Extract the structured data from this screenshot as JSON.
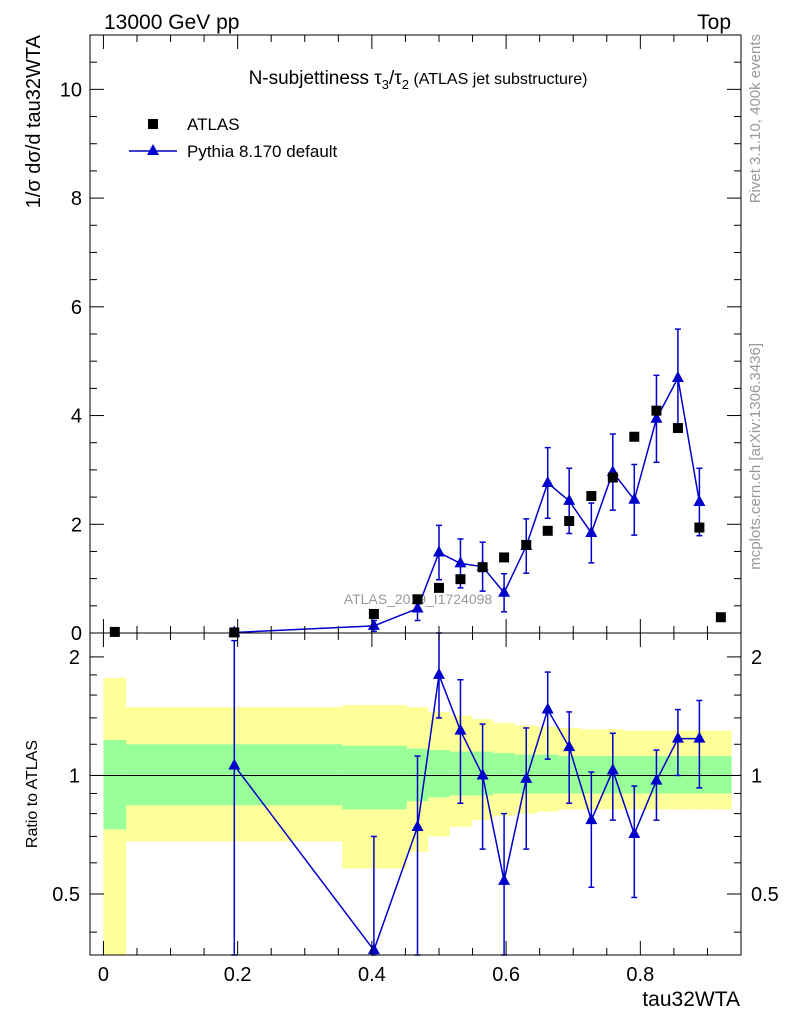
{
  "header": {
    "energy_label": "13000 GeV pp",
    "process_label": "Top"
  },
  "side_labels": {
    "rivet": "Rivet 3.1.10,  400k events",
    "mcplots": "mcplots.cern.ch [arXiv:1306.3436]"
  },
  "watermark": "ATLAS_2019_I1724098",
  "chart_data": [
    {
      "type": "scatter",
      "panel": "main",
      "title": "N-subjettiness τ3/τ2 (ATLAS jet substructure)",
      "ylabel": "1/σ dσ/d tau32WTA",
      "xlim": [
        -0.02,
        0.95
      ],
      "ylim": [
        0,
        11
      ],
      "yticks": [
        0,
        2,
        4,
        6,
        8,
        10
      ],
      "legend_position": "top-left",
      "series": [
        {
          "name": "ATLAS",
          "marker": "square",
          "color": "#000000",
          "points": [
            {
              "x": 0.017,
              "y": 0.02
            },
            {
              "x": 0.195,
              "y": 0.01
            },
            {
              "x": 0.403,
              "y": 0.35
            },
            {
              "x": 0.468,
              "y": 0.62
            },
            {
              "x": 0.5,
              "y": 0.83
            },
            {
              "x": 0.532,
              "y": 0.99
            },
            {
              "x": 0.565,
              "y": 1.21
            },
            {
              "x": 0.597,
              "y": 1.39
            },
            {
              "x": 0.63,
              "y": 1.62
            },
            {
              "x": 0.662,
              "y": 1.88
            },
            {
              "x": 0.694,
              "y": 2.06
            },
            {
              "x": 0.727,
              "y": 2.52
            },
            {
              "x": 0.759,
              "y": 2.86
            },
            {
              "x": 0.791,
              "y": 3.61
            },
            {
              "x": 0.824,
              "y": 4.09
            },
            {
              "x": 0.856,
              "y": 3.77
            },
            {
              "x": 0.888,
              "y": 1.94
            },
            {
              "x": 0.92,
              "y": 0.29
            }
          ]
        },
        {
          "name": "Pythia 8.170 default",
          "marker": "triangle",
          "color": "#0000cc",
          "connect": true,
          "points": [
            {
              "x": 0.195,
              "y": 0.01,
              "err": 0.0
            },
            {
              "x": 0.403,
              "y": 0.13,
              "err": 0.1
            },
            {
              "x": 0.468,
              "y": 0.45,
              "err": 0.22
            },
            {
              "x": 0.5,
              "y": 1.48,
              "err": 0.5
            },
            {
              "x": 0.532,
              "y": 1.28,
              "err": 0.45
            },
            {
              "x": 0.565,
              "y": 1.22,
              "err": 0.45
            },
            {
              "x": 0.597,
              "y": 0.74,
              "err": 0.35
            },
            {
              "x": 0.63,
              "y": 1.6,
              "err": 0.5
            },
            {
              "x": 0.662,
              "y": 2.76,
              "err": 0.65
            },
            {
              "x": 0.694,
              "y": 2.43,
              "err": 0.6
            },
            {
              "x": 0.727,
              "y": 1.84,
              "err": 0.55
            },
            {
              "x": 0.759,
              "y": 2.96,
              "err": 0.7
            },
            {
              "x": 0.791,
              "y": 2.45,
              "err": 0.65
            },
            {
              "x": 0.824,
              "y": 3.94,
              "err": 0.8
            },
            {
              "x": 0.856,
              "y": 4.69,
              "err": 0.9
            },
            {
              "x": 0.888,
              "y": 2.41,
              "err": 0.62
            }
          ]
        }
      ]
    },
    {
      "type": "scatter",
      "panel": "ratio",
      "ylabel": "Ratio to ATLAS",
      "xlabel": "tau32WTA",
      "xlim": [
        -0.02,
        0.95
      ],
      "ylim": [
        0.35,
        2.3
      ],
      "yscale": "log",
      "yticks": [
        0.5,
        1,
        2
      ],
      "reference_line": 1,
      "bands": [
        {
          "name": "yellow",
          "color": "#ffff99",
          "bins": [
            {
              "x0": 0.0,
              "x1": 0.034,
              "lo": 0.35,
              "hi": 1.77
            },
            {
              "x0": 0.034,
              "x1": 0.356,
              "lo": 0.68,
              "hi": 1.49
            },
            {
              "x0": 0.356,
              "x1": 0.452,
              "lo": 0.58,
              "hi": 1.51
            },
            {
              "x0": 0.452,
              "x1": 0.484,
              "lo": 0.64,
              "hi": 1.49
            },
            {
              "x0": 0.484,
              "x1": 0.516,
              "lo": 0.7,
              "hi": 1.45
            },
            {
              "x0": 0.516,
              "x1": 0.549,
              "lo": 0.74,
              "hi": 1.42
            },
            {
              "x0": 0.549,
              "x1": 0.581,
              "lo": 0.77,
              "hi": 1.39
            },
            {
              "x0": 0.581,
              "x1": 0.613,
              "lo": 0.79,
              "hi": 1.36
            },
            {
              "x0": 0.613,
              "x1": 0.646,
              "lo": 0.8,
              "hi": 1.34
            },
            {
              "x0": 0.646,
              "x1": 0.678,
              "lo": 0.81,
              "hi": 1.33
            },
            {
              "x0": 0.678,
              "x1": 0.71,
              "lo": 0.82,
              "hi": 1.32
            },
            {
              "x0": 0.71,
              "x1": 0.743,
              "lo": 0.82,
              "hi": 1.31
            },
            {
              "x0": 0.743,
              "x1": 0.775,
              "lo": 0.82,
              "hi": 1.31
            },
            {
              "x0": 0.775,
              "x1": 0.807,
              "lo": 0.82,
              "hi": 1.3
            },
            {
              "x0": 0.807,
              "x1": 0.84,
              "lo": 0.82,
              "hi": 1.3
            },
            {
              "x0": 0.84,
              "x1": 0.872,
              "lo": 0.82,
              "hi": 1.3
            },
            {
              "x0": 0.872,
              "x1": 0.904,
              "lo": 0.82,
              "hi": 1.3
            },
            {
              "x0": 0.904,
              "x1": 0.936,
              "lo": 0.82,
              "hi": 1.3
            }
          ]
        },
        {
          "name": "green",
          "color": "#99ff99",
          "bins": [
            {
              "x0": 0.0,
              "x1": 0.034,
              "lo": 0.73,
              "hi": 1.23
            },
            {
              "x0": 0.034,
              "x1": 0.356,
              "lo": 0.84,
              "hi": 1.2
            },
            {
              "x0": 0.356,
              "x1": 0.452,
              "lo": 0.82,
              "hi": 1.19
            },
            {
              "x0": 0.452,
              "x1": 0.484,
              "lo": 0.86,
              "hi": 1.17
            },
            {
              "x0": 0.484,
              "x1": 0.516,
              "lo": 0.88,
              "hi": 1.16
            },
            {
              "x0": 0.516,
              "x1": 0.549,
              "lo": 0.89,
              "hi": 1.15
            },
            {
              "x0": 0.549,
              "x1": 0.581,
              "lo": 0.89,
              "hi": 1.15
            },
            {
              "x0": 0.581,
              "x1": 0.613,
              "lo": 0.9,
              "hi": 1.14
            },
            {
              "x0": 0.613,
              "x1": 0.646,
              "lo": 0.9,
              "hi": 1.13
            },
            {
              "x0": 0.646,
              "x1": 0.678,
              "lo": 0.9,
              "hi": 1.13
            },
            {
              "x0": 0.678,
              "x1": 0.71,
              "lo": 0.9,
              "hi": 1.12
            },
            {
              "x0": 0.71,
              "x1": 0.743,
              "lo": 0.9,
              "hi": 1.12
            },
            {
              "x0": 0.743,
              "x1": 0.775,
              "lo": 0.9,
              "hi": 1.12
            },
            {
              "x0": 0.775,
              "x1": 0.807,
              "lo": 0.9,
              "hi": 1.12
            },
            {
              "x0": 0.807,
              "x1": 0.84,
              "lo": 0.9,
              "hi": 1.12
            },
            {
              "x0": 0.84,
              "x1": 0.872,
              "lo": 0.9,
              "hi": 1.12
            },
            {
              "x0": 0.872,
              "x1": 0.904,
              "lo": 0.9,
              "hi": 1.12
            },
            {
              "x0": 0.904,
              "x1": 0.936,
              "lo": 0.9,
              "hi": 1.12
            }
          ]
        }
      ],
      "series": [
        {
          "name": "Pythia 8.170 default",
          "marker": "triangle",
          "color": "#0000cc",
          "connect": true,
          "points": [
            {
              "x": 0.195,
              "y": 1.06,
              "lo": 0.35,
              "hi": 2.2
            },
            {
              "x": 0.403,
              "y": 0.36,
              "lo": 0.35,
              "hi": 0.7
            },
            {
              "x": 0.468,
              "y": 0.74,
              "lo": 0.35,
              "hi": 1.12
            },
            {
              "x": 0.5,
              "y": 1.8,
              "lo": 1.4,
              "hi": 2.35
            },
            {
              "x": 0.532,
              "y": 1.3,
              "lo": 0.85,
              "hi": 1.75
            },
            {
              "x": 0.565,
              "y": 1.0,
              "lo": 0.65,
              "hi": 1.35
            },
            {
              "x": 0.597,
              "y": 0.54,
              "lo": 0.35,
              "hi": 0.8
            },
            {
              "x": 0.63,
              "y": 0.98,
              "lo": 0.65,
              "hi": 1.32
            },
            {
              "x": 0.662,
              "y": 1.47,
              "lo": 1.1,
              "hi": 1.83
            },
            {
              "x": 0.694,
              "y": 1.18,
              "lo": 0.85,
              "hi": 1.45
            },
            {
              "x": 0.727,
              "y": 0.77,
              "lo": 0.52,
              "hi": 1.02
            },
            {
              "x": 0.759,
              "y": 1.03,
              "lo": 0.77,
              "hi": 1.28
            },
            {
              "x": 0.791,
              "y": 0.71,
              "lo": 0.49,
              "hi": 0.94
            },
            {
              "x": 0.824,
              "y": 0.97,
              "lo": 0.77,
              "hi": 1.16
            },
            {
              "x": 0.856,
              "y": 1.24,
              "lo": 1.0,
              "hi": 1.47
            },
            {
              "x": 0.888,
              "y": 1.24,
              "lo": 0.93,
              "hi": 1.55
            }
          ]
        }
      ]
    }
  ],
  "xticks": [
    {
      "value": 0.0,
      "label": "0"
    },
    {
      "value": 0.2,
      "label": "0.2"
    },
    {
      "value": 0.4,
      "label": "0.4"
    },
    {
      "value": 0.6,
      "label": "0.6"
    },
    {
      "value": 0.8,
      "label": "0.8"
    }
  ]
}
